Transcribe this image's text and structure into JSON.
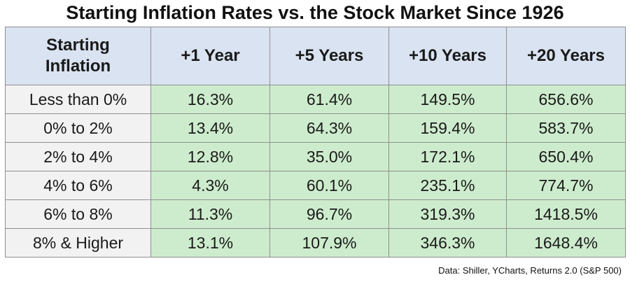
{
  "chart_data": {
    "type": "table",
    "title": "Starting Inflation Rates vs. the Stock Market Since 1926",
    "columns": [
      "Starting Inflation",
      "+1 Year",
      "+5 Years",
      "+10 Years",
      "+20 Years"
    ],
    "rows": [
      {
        "label": "Less than 0%",
        "values": [
          "16.3%",
          "61.4%",
          "149.5%",
          "656.6%"
        ]
      },
      {
        "label": "0% to 2%",
        "values": [
          "13.4%",
          "64.3%",
          "159.4%",
          "583.7%"
        ]
      },
      {
        "label": "2% to 4%",
        "values": [
          "12.8%",
          "35.0%",
          "172.1%",
          "650.4%"
        ]
      },
      {
        "label": "4% to 6%",
        "values": [
          "4.3%",
          "60.1%",
          "235.1%",
          "774.7%"
        ]
      },
      {
        "label": "6% to 8%",
        "values": [
          "11.3%",
          "96.7%",
          "319.3%",
          "1418.5%"
        ]
      },
      {
        "label": "8% & Higher",
        "values": [
          "13.1%",
          "107.9%",
          "346.3%",
          "1648.4%"
        ]
      }
    ],
    "source": "Data: Shiller, YCharts, Returns 2.0 (S&P 500)",
    "colors": {
      "header": "#dae3f1",
      "row_label": "#f2f2f2",
      "value_cell": "#cdeccd",
      "border": "#8f8f8f"
    }
  }
}
